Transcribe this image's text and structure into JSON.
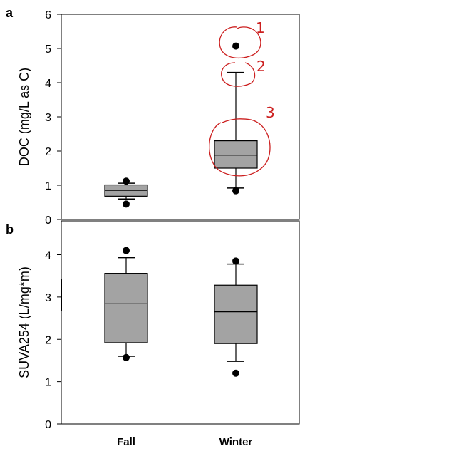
{
  "chart_data": [
    {
      "type": "box",
      "panel_label": "a",
      "ylabel": "DOC (mg/L as C)",
      "ylim": [
        0,
        6
      ],
      "yticks": [
        "0",
        "1",
        "2",
        "3",
        "4",
        "5",
        "6"
      ],
      "categories": [
        "Fall",
        "Winter"
      ],
      "show_category_labels": false,
      "boxes": [
        {
          "category": "Fall",
          "whisker_low": 0.6,
          "q1": 0.68,
          "median": 0.85,
          "q3": 1.01,
          "whisker_high": 1.06,
          "outliers": [
            0.45,
            1.12
          ]
        },
        {
          "category": "Winter",
          "whisker_low": 0.92,
          "q1": 1.5,
          "median": 1.88,
          "q3": 2.3,
          "whisker_high": 4.3,
          "outliers": [
            0.84,
            5.07
          ]
        }
      ],
      "grid": false,
      "annotations": {
        "color": "#cc1f1f",
        "style": "hand-drawn",
        "labels": [
          "1",
          "2",
          "3"
        ]
      }
    },
    {
      "type": "box",
      "panel_label": "b",
      "ylabel": "SUVA254 (L/mg*m)",
      "ylim": [
        0,
        4.8
      ],
      "yticks": [
        "0",
        "1",
        "2",
        "3",
        "4"
      ],
      "categories": [
        "Fall",
        "Winter"
      ],
      "show_category_labels": true,
      "boxes": [
        {
          "category": "Fall",
          "whisker_low": 1.6,
          "q1": 1.92,
          "median": 2.84,
          "q3": 3.56,
          "whisker_high": 3.93,
          "outliers": [
            1.57,
            4.1
          ]
        },
        {
          "category": "Winter",
          "whisker_low": 1.48,
          "q1": 1.9,
          "median": 2.65,
          "q3": 3.28,
          "whisker_high": 3.78,
          "outliers": [
            1.2,
            3.85
          ]
        }
      ],
      "grid": false
    }
  ],
  "colors": {
    "box_fill": "#a3a3a3",
    "axis": "#000000",
    "annotation": "#cc1f1f"
  }
}
